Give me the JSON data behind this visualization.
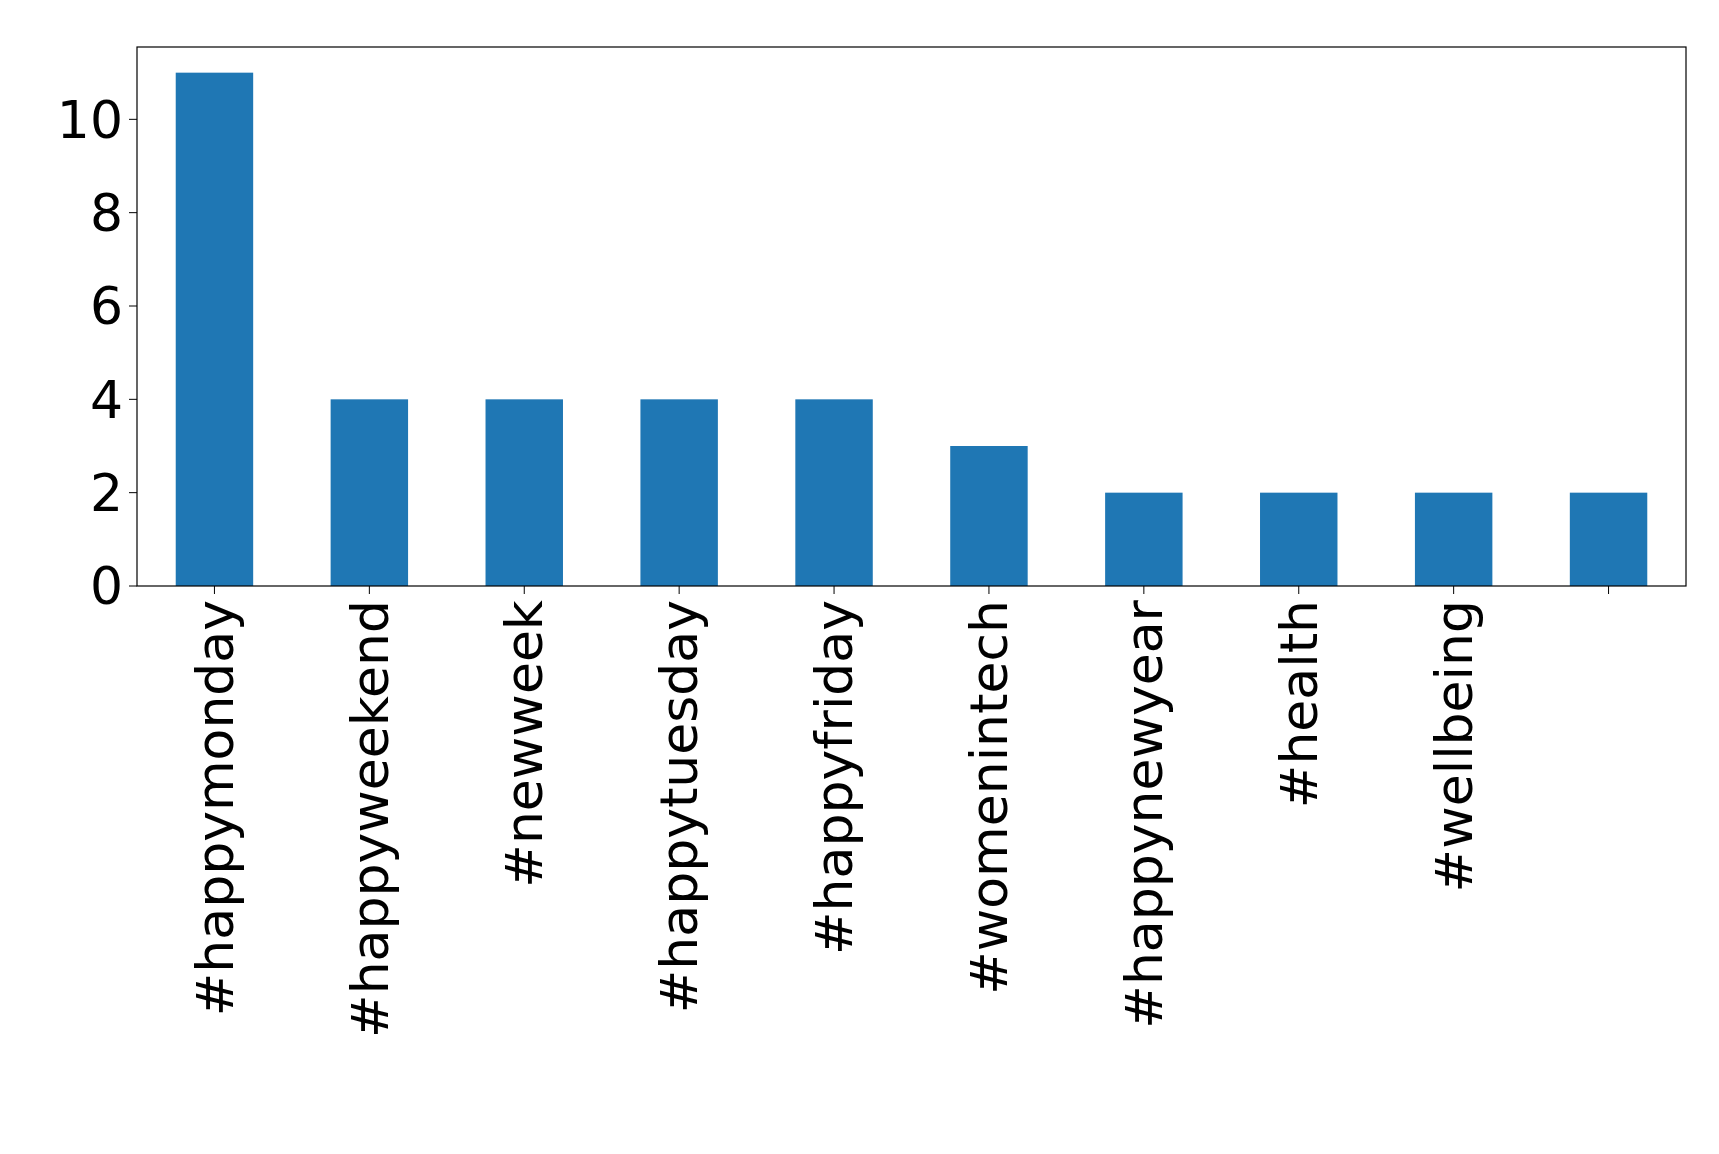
{
  "chart_data": {
    "type": "bar",
    "categories": [
      "#happymonday",
      "#happyweekend",
      "#newweek",
      "#happytuesday",
      "#happyfriday",
      "#womenintech",
      "#happynewyear",
      "#health",
      "#wellbeing",
      null
    ],
    "values": [
      11,
      4,
      4,
      4,
      4,
      3,
      2,
      2,
      2,
      2
    ],
    "color": "#1f77b4",
    "ylim": [
      0,
      11.55
    ],
    "yticks": [
      0,
      2,
      4,
      6,
      8,
      10
    ],
    "grid": false
  }
}
